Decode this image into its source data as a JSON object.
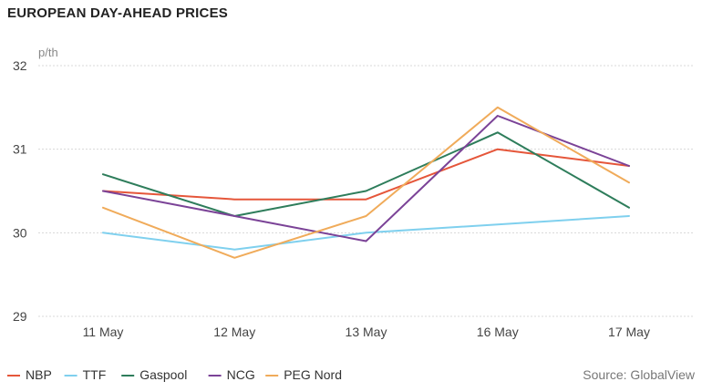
{
  "chart_data": {
    "type": "line",
    "title": "EUROPEAN DAY-AHEAD PRICES",
    "ylabel": "p/th",
    "xlabel": "",
    "categories": [
      "11 May",
      "12 May",
      "13 May",
      "16 May",
      "17 May"
    ],
    "ylim": [
      29,
      32
    ],
    "yticks": [
      29,
      30,
      31,
      32
    ],
    "grid": true,
    "legend_placement": "bottom-left",
    "series": [
      {
        "name": "NBP",
        "color": "#e5563a",
        "values": [
          30.5,
          30.4,
          30.4,
          31.0,
          30.8
        ]
      },
      {
        "name": "TTF",
        "color": "#7fd0ee",
        "values": [
          30.0,
          29.8,
          30.0,
          30.1,
          30.2
        ]
      },
      {
        "name": "Gaspool",
        "color": "#2e7d5b",
        "values": [
          30.7,
          30.2,
          30.5,
          31.2,
          30.3
        ]
      },
      {
        "name": "NCG",
        "color": "#7b4397",
        "values": [
          30.5,
          30.2,
          29.9,
          31.4,
          30.8
        ]
      },
      {
        "name": "PEG Nord",
        "color": "#f0ab5a",
        "values": [
          30.3,
          29.7,
          30.2,
          31.5,
          30.6
        ]
      }
    ],
    "source": "Source: GlobalView"
  }
}
